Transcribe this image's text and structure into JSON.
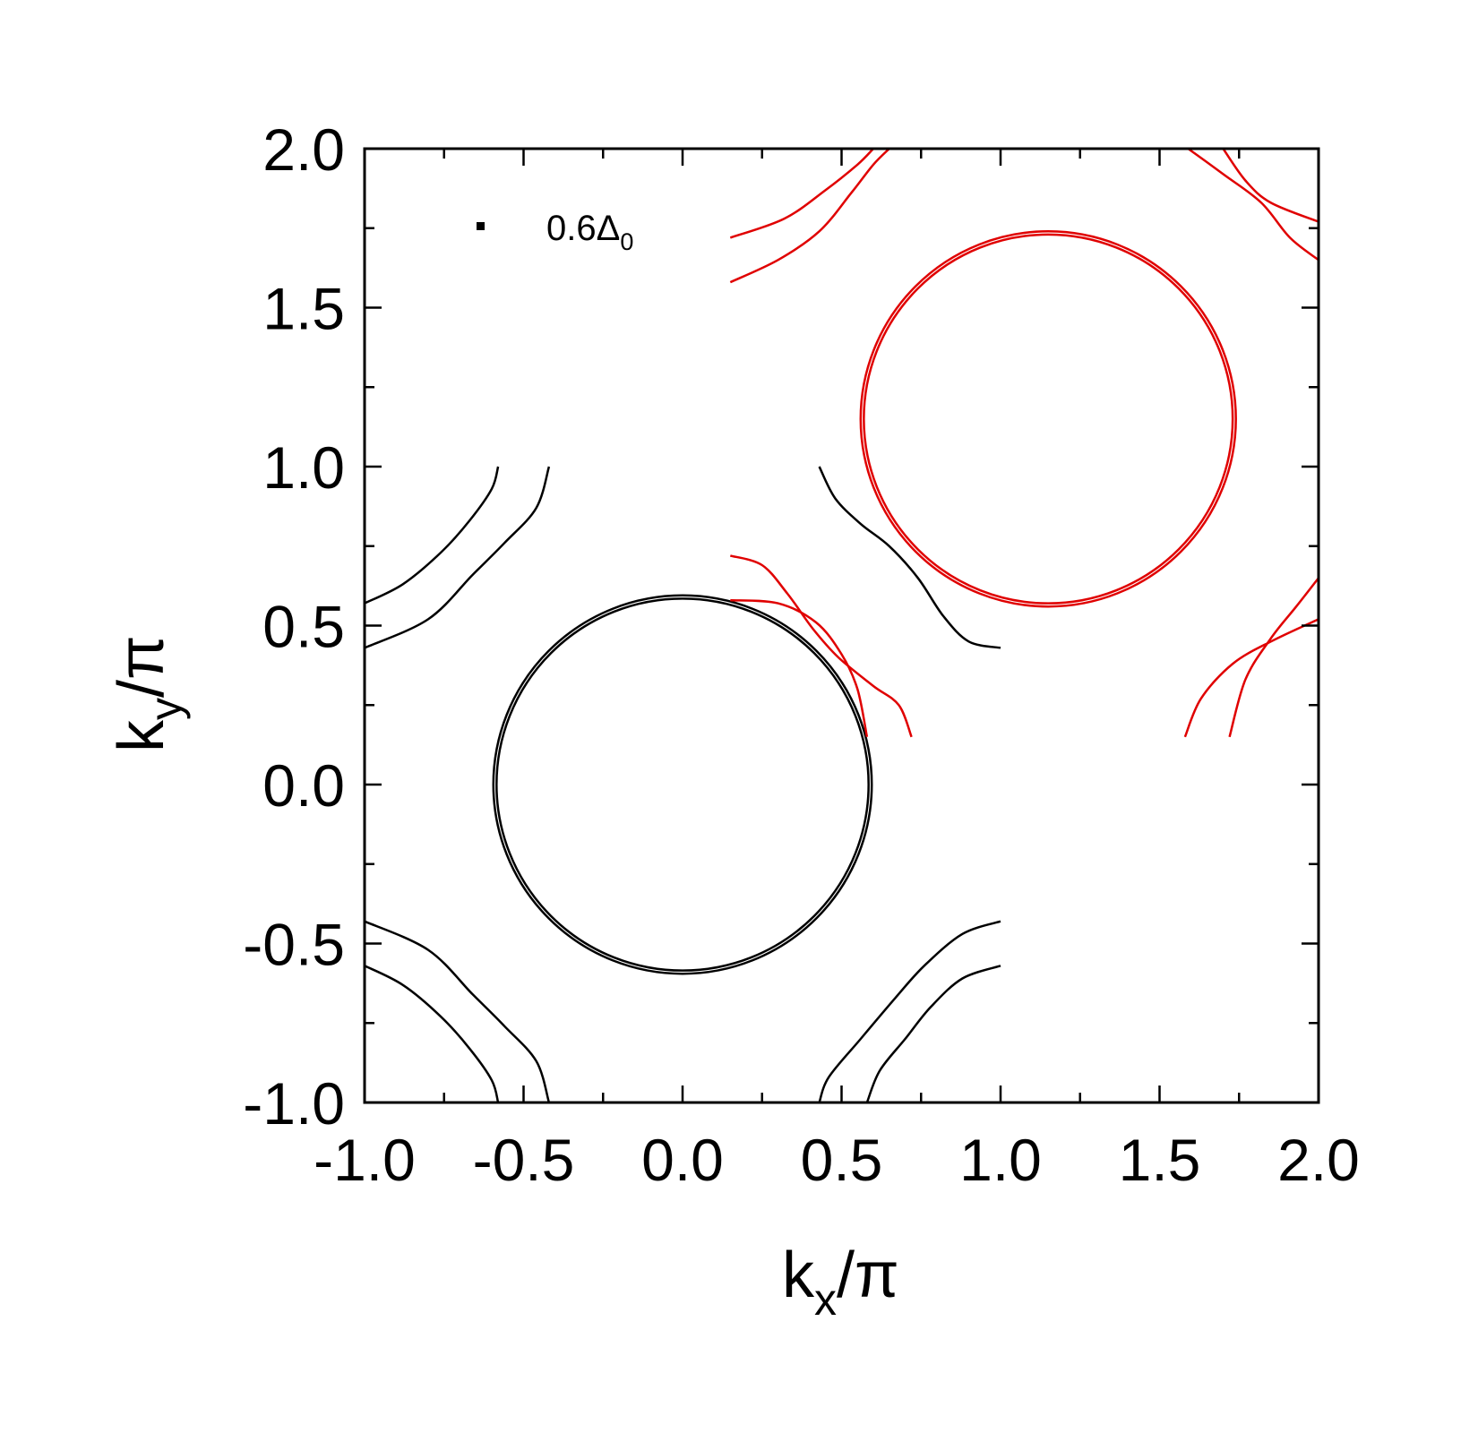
{
  "chart_data": {
    "type": "line",
    "title": "",
    "xlabel": {
      "main": "k",
      "sub": "x",
      "tail": "/π"
    },
    "ylabel": {
      "main": "k",
      "sub": "y",
      "tail": "/π"
    },
    "xlim": [
      -1.0,
      2.0
    ],
    "ylim": [
      -1.0,
      2.0
    ],
    "x_major_ticks": [
      -1.0,
      -0.5,
      0.0,
      0.5,
      1.0,
      1.5,
      2.0
    ],
    "y_major_ticks": [
      -1.0,
      -0.5,
      0.0,
      0.5,
      1.0,
      1.5,
      2.0
    ],
    "x_tick_labels": [
      "-1.0",
      "-0.5",
      "0.0",
      "0.5",
      "1.0",
      "1.5",
      "2.0"
    ],
    "y_tick_labels": [
      "-1.0",
      "-0.5",
      "0.0",
      "0.5",
      "1.0",
      "1.5",
      "2.0"
    ],
    "minor_tick_step": 0.25,
    "grid": false,
    "legend": {
      "position": "top-left",
      "main": "0.6Δ",
      "sub": "0",
      "marker": "square",
      "color": "#000000"
    },
    "colors": {
      "black": "#000000",
      "red": "#e00000"
    },
    "series": [
      {
        "color": "black",
        "shape": "ring",
        "cx": 0.0,
        "cy": 0.0,
        "r": 0.595
      },
      {
        "color": "black",
        "shape": "ring",
        "cx": 0.0,
        "cy": 0.0,
        "r": 0.585
      },
      {
        "color": "red",
        "shape": "ring",
        "cx": 1.15,
        "cy": 1.15,
        "r": 0.59
      },
      {
        "color": "red",
        "shape": "ring",
        "cx": 1.15,
        "cy": 1.15,
        "r": 0.58
      },
      {
        "color": "black",
        "points": [
          [
            -1.0,
            0.57
          ],
          [
            -0.88,
            0.63
          ],
          [
            -0.76,
            0.73
          ],
          [
            -0.67,
            0.83
          ],
          [
            -0.6,
            0.93
          ],
          [
            -0.58,
            1.0
          ]
        ]
      },
      {
        "color": "black",
        "points": [
          [
            -1.0,
            0.43
          ],
          [
            -0.8,
            0.52
          ],
          [
            -0.66,
            0.66
          ],
          [
            -0.56,
            0.76
          ],
          [
            -0.46,
            0.87
          ],
          [
            -0.42,
            1.0
          ]
        ]
      },
      {
        "color": "black",
        "points": [
          [
            -1.0,
            -0.57
          ],
          [
            -0.88,
            -0.63
          ],
          [
            -0.76,
            -0.73
          ],
          [
            -0.67,
            -0.83
          ],
          [
            -0.6,
            -0.93
          ],
          [
            -0.58,
            -1.0
          ]
        ]
      },
      {
        "color": "black",
        "points": [
          [
            -1.0,
            -0.43
          ],
          [
            -0.8,
            -0.52
          ],
          [
            -0.66,
            -0.66
          ],
          [
            -0.56,
            -0.76
          ],
          [
            -0.46,
            -0.87
          ],
          [
            -0.42,
            -1.0
          ]
        ]
      },
      {
        "color": "black",
        "points": [
          [
            1.0,
            -0.43
          ],
          [
            0.88,
            -0.47
          ],
          [
            0.76,
            -0.57
          ],
          [
            0.67,
            -0.67
          ],
          [
            0.56,
            -0.8
          ],
          [
            0.46,
            -0.92
          ],
          [
            0.43,
            -1.0
          ]
        ]
      },
      {
        "color": "black",
        "points": [
          [
            1.0,
            -0.57
          ],
          [
            0.88,
            -0.61
          ],
          [
            0.78,
            -0.7
          ],
          [
            0.7,
            -0.8
          ],
          [
            0.62,
            -0.9
          ],
          [
            0.58,
            -1.0
          ]
        ]
      },
      {
        "color": "black",
        "points": [
          [
            0.43,
            1.0
          ],
          [
            0.48,
            0.9
          ],
          [
            0.56,
            0.82
          ],
          [
            0.65,
            0.75
          ],
          [
            0.74,
            0.65
          ],
          [
            0.82,
            0.53
          ],
          [
            0.9,
            0.45
          ],
          [
            1.0,
            0.43
          ]
        ]
      },
      {
        "color": "red",
        "points": [
          [
            0.15,
            0.72
          ],
          [
            0.25,
            0.69
          ],
          [
            0.33,
            0.6
          ],
          [
            0.41,
            0.49
          ],
          [
            0.49,
            0.4
          ],
          [
            0.6,
            0.31
          ],
          [
            0.68,
            0.25
          ],
          [
            0.72,
            0.15
          ]
        ]
      },
      {
        "color": "red",
        "points": [
          [
            0.15,
            0.58
          ],
          [
            0.3,
            0.57
          ],
          [
            0.42,
            0.51
          ],
          [
            0.5,
            0.41
          ],
          [
            0.55,
            0.3
          ],
          [
            0.58,
            0.15
          ]
        ]
      },
      {
        "color": "red",
        "points": [
          [
            0.15,
            1.72
          ],
          [
            0.32,
            1.78
          ],
          [
            0.45,
            1.87
          ],
          [
            0.55,
            1.95
          ],
          [
            0.6,
            2.0
          ]
        ]
      },
      {
        "color": "red",
        "points": [
          [
            0.15,
            1.58
          ],
          [
            0.3,
            1.65
          ],
          [
            0.43,
            1.74
          ],
          [
            0.53,
            1.86
          ],
          [
            0.6,
            1.95
          ],
          [
            0.65,
            2.0
          ]
        ]
      },
      {
        "color": "red",
        "points": [
          [
            1.58,
            0.15
          ],
          [
            1.63,
            0.27
          ],
          [
            1.73,
            0.38
          ],
          [
            1.85,
            0.45
          ],
          [
            2.0,
            0.52
          ]
        ]
      },
      {
        "color": "red",
        "points": [
          [
            1.72,
            0.15
          ],
          [
            1.77,
            0.33
          ],
          [
            1.85,
            0.46
          ],
          [
            1.93,
            0.56
          ],
          [
            2.0,
            0.65
          ]
        ]
      },
      {
        "color": "red",
        "points": [
          [
            1.7,
            2.0
          ],
          [
            1.77,
            1.9
          ],
          [
            1.85,
            1.83
          ],
          [
            2.0,
            1.77
          ]
        ]
      },
      {
        "color": "red",
        "points": [
          [
            1.59,
            2.0
          ],
          [
            1.7,
            1.92
          ],
          [
            1.82,
            1.83
          ],
          [
            1.91,
            1.72
          ],
          [
            2.0,
            1.65
          ]
        ]
      }
    ]
  }
}
